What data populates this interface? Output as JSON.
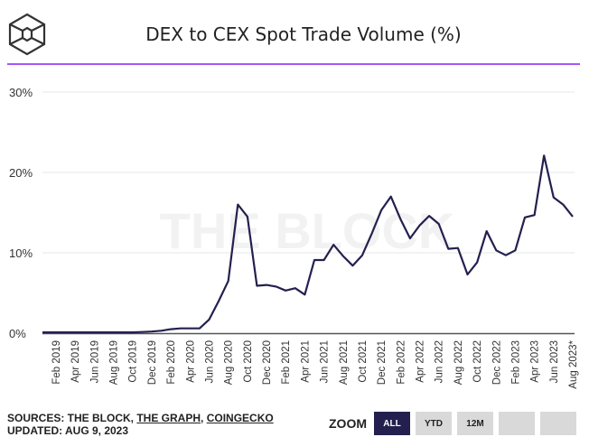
{
  "title": "DEX to CEX Spot Trade Volume (%)",
  "colors": {
    "accent": "#a855f7",
    "line": "#23204f",
    "grid": "#ececec"
  },
  "watermark": "THE BLOCK",
  "footer": {
    "sources_prefix": "SOURCES: THE BLOCK, ",
    "source_links": [
      "THE GRAPH",
      "COINGECKO"
    ],
    "updated": "UPDATED: AUG 9, 2023"
  },
  "zoom": {
    "label": "ZOOM",
    "buttons": [
      "ALL",
      "YTD",
      "12M",
      "",
      ""
    ],
    "active": "ALL"
  },
  "chart_data": {
    "type": "line",
    "title": "DEX to CEX Spot Trade Volume (%)",
    "xlabel": "",
    "ylabel": "",
    "ylim": [
      0,
      30
    ],
    "yticks": [
      "0%",
      "10%",
      "20%",
      "30%"
    ],
    "ytick_values": [
      0,
      10,
      20,
      30
    ],
    "xtick_labels": [
      "Feb 2019",
      "Apr 2019",
      "Jun 2019",
      "Aug 2019",
      "Oct 2019",
      "Dec 2019",
      "Feb 2020",
      "Apr 2020",
      "Jun 2020",
      "Aug 2020",
      "Oct 2020",
      "Dec 2020",
      "Feb 2021",
      "Apr 2021",
      "Jun 2021",
      "Aug 2021",
      "Oct 2021",
      "Dec 2021",
      "Feb 2022",
      "Apr 2022",
      "Jun 2022",
      "Aug 2022",
      "Oct 2022",
      "Dec 2022",
      "Feb 2023",
      "Apr 2023",
      "Jun 2023",
      "Aug 2023*"
    ],
    "grid": true,
    "series": [
      {
        "name": "DEX to CEX (%)",
        "values": [
          0.1,
          0.1,
          0.1,
          0.1,
          0.1,
          0.1,
          0.1,
          0.1,
          0.1,
          0.15,
          0.2,
          0.3,
          0.5,
          0.6,
          0.6,
          0.6,
          1.7,
          4.0,
          6.5,
          16.0,
          14.5,
          5.9,
          6.0,
          5.8,
          5.3,
          5.6,
          4.8,
          9.1,
          9.1,
          11.0,
          9.6,
          8.4,
          9.7,
          12.4,
          15.3,
          17.0,
          14.2,
          11.8,
          13.4,
          14.6,
          13.6,
          10.5,
          10.6,
          7.3,
          8.8,
          12.7,
          10.3,
          9.7,
          10.3,
          14.4,
          14.7,
          22.1,
          16.9,
          16.0,
          14.5
        ]
      }
    ]
  }
}
